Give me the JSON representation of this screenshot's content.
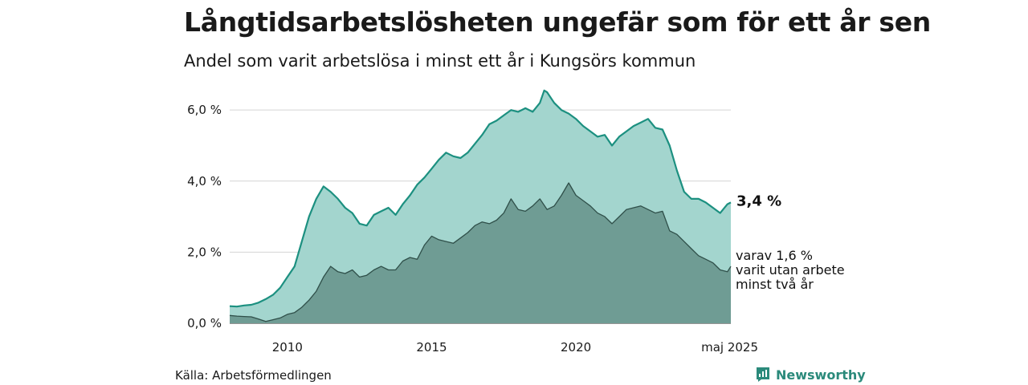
{
  "title": "Långtidsarbetslösheten ungefär som för ett år sen",
  "subtitle": "Andel som varit arbetslösa i minst ett år i Kungsörs kommun",
  "source": "Källa: Arbetsförmedlingen",
  "brand": {
    "name": "Newsworthy",
    "icon": "newsworthy-logo-icon",
    "color": "#2b8a7b"
  },
  "chart_data": {
    "type": "area",
    "x_unit": "year",
    "xlim": [
      2008.0,
      2025.37
    ],
    "ylim": [
      0,
      6.5
    ],
    "grid": true,
    "x_ticks": [
      {
        "value": 2010,
        "label": "2010"
      },
      {
        "value": 2015,
        "label": "2015"
      },
      {
        "value": 2020,
        "label": "2020"
      },
      {
        "value": 2025.33,
        "label": "maj 2025"
      }
    ],
    "y_ticks": [
      {
        "value": 0,
        "label": "0,0 %"
      },
      {
        "value": 2,
        "label": "2,0 %"
      },
      {
        "value": 4,
        "label": "4,0 %"
      },
      {
        "value": 6,
        "label": "6,0 %"
      }
    ],
    "series": [
      {
        "color": "#a3d5ce",
        "stroke": "#1c9080",
        "end_label": "3,4 %",
        "points": [
          [
            2008.0,
            0.48
          ],
          [
            2008.25,
            0.47
          ],
          [
            2008.5,
            0.5
          ],
          [
            2008.75,
            0.52
          ],
          [
            2009.0,
            0.58
          ],
          [
            2009.25,
            0.68
          ],
          [
            2009.5,
            0.8
          ],
          [
            2009.75,
            1.0
          ],
          [
            2010.0,
            1.3
          ],
          [
            2010.25,
            1.6
          ],
          [
            2010.5,
            2.3
          ],
          [
            2010.75,
            3.0
          ],
          [
            2011.0,
            3.5
          ],
          [
            2011.25,
            3.85
          ],
          [
            2011.5,
            3.7
          ],
          [
            2011.75,
            3.5
          ],
          [
            2012.0,
            3.25
          ],
          [
            2012.25,
            3.1
          ],
          [
            2012.5,
            2.8
          ],
          [
            2012.75,
            2.75
          ],
          [
            2013.0,
            3.05
          ],
          [
            2013.25,
            3.15
          ],
          [
            2013.5,
            3.25
          ],
          [
            2013.75,
            3.05
          ],
          [
            2014.0,
            3.35
          ],
          [
            2014.25,
            3.6
          ],
          [
            2014.5,
            3.9
          ],
          [
            2014.75,
            4.1
          ],
          [
            2015.0,
            4.35
          ],
          [
            2015.25,
            4.6
          ],
          [
            2015.5,
            4.8
          ],
          [
            2015.75,
            4.7
          ],
          [
            2016.0,
            4.65
          ],
          [
            2016.25,
            4.8
          ],
          [
            2016.5,
            5.05
          ],
          [
            2016.75,
            5.3
          ],
          [
            2017.0,
            5.6
          ],
          [
            2017.25,
            5.7
          ],
          [
            2017.5,
            5.85
          ],
          [
            2017.75,
            6.0
          ],
          [
            2018.0,
            5.95
          ],
          [
            2018.25,
            6.05
          ],
          [
            2018.5,
            5.95
          ],
          [
            2018.75,
            6.2
          ],
          [
            2018.9,
            6.55
          ],
          [
            2019.0,
            6.5
          ],
          [
            2019.25,
            6.2
          ],
          [
            2019.5,
            6.0
          ],
          [
            2019.75,
            5.9
          ],
          [
            2020.0,
            5.75
          ],
          [
            2020.25,
            5.55
          ],
          [
            2020.5,
            5.4
          ],
          [
            2020.75,
            5.25
          ],
          [
            2021.0,
            5.3
          ],
          [
            2021.25,
            5.0
          ],
          [
            2021.5,
            5.25
          ],
          [
            2021.75,
            5.4
          ],
          [
            2022.0,
            5.55
          ],
          [
            2022.25,
            5.65
          ],
          [
            2022.5,
            5.75
          ],
          [
            2022.75,
            5.5
          ],
          [
            2023.0,
            5.45
          ],
          [
            2023.25,
            5.0
          ],
          [
            2023.5,
            4.3
          ],
          [
            2023.75,
            3.7
          ],
          [
            2024.0,
            3.5
          ],
          [
            2024.25,
            3.5
          ],
          [
            2024.5,
            3.4
          ],
          [
            2024.75,
            3.25
          ],
          [
            2025.0,
            3.1
          ],
          [
            2025.25,
            3.35
          ],
          [
            2025.37,
            3.4
          ]
        ]
      },
      {
        "color": "#6f9c94",
        "stroke": "#2f4f49",
        "end_label": [
          "varav 1,6 %",
          "varit utan arbete",
          "minst två år"
        ],
        "points": [
          [
            2008.0,
            0.22
          ],
          [
            2008.25,
            0.2
          ],
          [
            2008.5,
            0.19
          ],
          [
            2008.75,
            0.18
          ],
          [
            2009.0,
            0.12
          ],
          [
            2009.25,
            0.05
          ],
          [
            2009.5,
            0.1
          ],
          [
            2009.75,
            0.15
          ],
          [
            2010.0,
            0.25
          ],
          [
            2010.25,
            0.3
          ],
          [
            2010.5,
            0.45
          ],
          [
            2010.75,
            0.65
          ],
          [
            2011.0,
            0.9
          ],
          [
            2011.25,
            1.3
          ],
          [
            2011.5,
            1.6
          ],
          [
            2011.75,
            1.45
          ],
          [
            2012.0,
            1.4
          ],
          [
            2012.25,
            1.5
          ],
          [
            2012.5,
            1.3
          ],
          [
            2012.75,
            1.35
          ],
          [
            2013.0,
            1.5
          ],
          [
            2013.25,
            1.6
          ],
          [
            2013.5,
            1.5
          ],
          [
            2013.75,
            1.5
          ],
          [
            2014.0,
            1.75
          ],
          [
            2014.25,
            1.85
          ],
          [
            2014.5,
            1.8
          ],
          [
            2014.75,
            2.2
          ],
          [
            2015.0,
            2.45
          ],
          [
            2015.25,
            2.35
          ],
          [
            2015.5,
            2.3
          ],
          [
            2015.75,
            2.25
          ],
          [
            2016.0,
            2.4
          ],
          [
            2016.25,
            2.55
          ],
          [
            2016.5,
            2.75
          ],
          [
            2016.75,
            2.85
          ],
          [
            2017.0,
            2.8
          ],
          [
            2017.25,
            2.9
          ],
          [
            2017.5,
            3.1
          ],
          [
            2017.75,
            3.5
          ],
          [
            2018.0,
            3.2
          ],
          [
            2018.25,
            3.15
          ],
          [
            2018.5,
            3.3
          ],
          [
            2018.75,
            3.5
          ],
          [
            2019.0,
            3.2
          ],
          [
            2019.25,
            3.3
          ],
          [
            2019.5,
            3.6
          ],
          [
            2019.75,
            3.95
          ],
          [
            2020.0,
            3.6
          ],
          [
            2020.25,
            3.45
          ],
          [
            2020.5,
            3.3
          ],
          [
            2020.75,
            3.1
          ],
          [
            2021.0,
            3.0
          ],
          [
            2021.25,
            2.8
          ],
          [
            2021.5,
            3.0
          ],
          [
            2021.75,
            3.2
          ],
          [
            2022.0,
            3.25
          ],
          [
            2022.25,
            3.3
          ],
          [
            2022.5,
            3.2
          ],
          [
            2022.75,
            3.1
          ],
          [
            2023.0,
            3.15
          ],
          [
            2023.25,
            2.6
          ],
          [
            2023.5,
            2.5
          ],
          [
            2023.75,
            2.3
          ],
          [
            2024.0,
            2.1
          ],
          [
            2024.25,
            1.9
          ],
          [
            2024.5,
            1.8
          ],
          [
            2024.75,
            1.7
          ],
          [
            2025.0,
            1.5
          ],
          [
            2025.25,
            1.45
          ],
          [
            2025.37,
            1.6
          ]
        ]
      }
    ]
  }
}
